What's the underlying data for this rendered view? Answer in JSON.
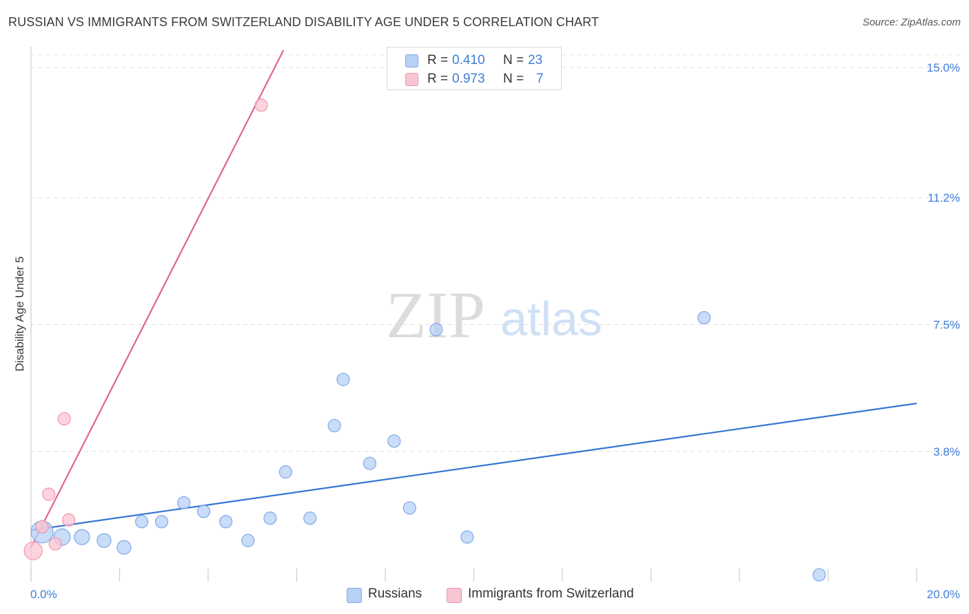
{
  "title": "RUSSIAN VS IMMIGRANTS FROM SWITZERLAND DISABILITY AGE UNDER 5 CORRELATION CHART",
  "source": "Source: ZipAtlas.com",
  "watermark": {
    "zip": "ZIP",
    "atlas": "atlas"
  },
  "legend_top": [
    {
      "r_label": "R =",
      "r_value": "0.410",
      "n_label": "N =",
      "n_value": "23",
      "color": "#b7d0f5",
      "border": "#7ea8e8"
    },
    {
      "r_label": "R =",
      "r_value": "0.973",
      "n_label": "N =",
      "n_value": "7",
      "color": "#f9c5d3",
      "border": "#ef94ad"
    }
  ],
  "legend_bottom": [
    {
      "label": "Russians",
      "color": "#b7d0f5",
      "border": "#7ea8e8"
    },
    {
      "label": "Immigrants from Switzerland",
      "color": "#f9c5d3",
      "border": "#ef94ad"
    }
  ],
  "chart_data": {
    "type": "scatter",
    "title": "RUSSIAN VS IMMIGRANTS FROM SWITZERLAND DISABILITY AGE UNDER 5 CORRELATION CHART",
    "xlabel": "",
    "ylabel": "Disability Age Under 5",
    "xlim": [
      0,
      20
    ],
    "ylim": [
      0,
      15.5
    ],
    "x_tick_labels": [
      "0.0%",
      "20.0%"
    ],
    "y_ticks": [
      3.8,
      7.5,
      11.2,
      15.0
    ],
    "y_tick_labels": [
      "3.8%",
      "7.5%",
      "11.2%",
      "15.0%"
    ],
    "grid": true,
    "legend_position": "top-center",
    "series": [
      {
        "name": "Russians",
        "color": "#7ea8e8",
        "fill": "#b7d0f5",
        "line_color": "#3474d4",
        "trend": [
          [
            0.0,
            1.5
          ],
          [
            20.0,
            5.2
          ]
        ],
        "points": [
          [
            0.25,
            1.45,
            16
          ],
          [
            0.7,
            1.3,
            12
          ],
          [
            1.15,
            1.3,
            11
          ],
          [
            1.65,
            1.2,
            10
          ],
          [
            2.1,
            1.0,
            10
          ],
          [
            2.5,
            1.75,
            9
          ],
          [
            2.95,
            1.75,
            9
          ],
          [
            3.45,
            2.3,
            9
          ],
          [
            3.9,
            2.05,
            9
          ],
          [
            4.4,
            1.75,
            9
          ],
          [
            4.9,
            1.2,
            9
          ],
          [
            5.4,
            1.85,
            9
          ],
          [
            5.75,
            3.2,
            9
          ],
          [
            6.3,
            1.85,
            9
          ],
          [
            6.85,
            4.55,
            9
          ],
          [
            7.05,
            5.9,
            9
          ],
          [
            7.65,
            3.45,
            9
          ],
          [
            8.2,
            4.1,
            9
          ],
          [
            8.55,
            2.15,
            9
          ],
          [
            9.15,
            7.35,
            9
          ],
          [
            9.85,
            1.3,
            9
          ],
          [
            15.2,
            7.7,
            9
          ],
          [
            17.8,
            0.2,
            9
          ]
        ]
      },
      {
        "name": "Immigrants from Switzerland",
        "color": "#ef94ad",
        "fill": "#f9c5d3",
        "line_color": "#e0648f",
        "trend": [
          [
            0.0,
            1.0
          ],
          [
            5.7,
            15.5
          ]
        ],
        "points": [
          [
            0.05,
            0.9,
            13
          ],
          [
            0.25,
            1.6,
            9
          ],
          [
            0.4,
            2.55,
            9
          ],
          [
            0.55,
            1.1,
            9
          ],
          [
            0.75,
            4.75,
            9
          ],
          [
            0.85,
            1.8,
            9
          ],
          [
            5.2,
            13.9,
            9
          ]
        ]
      }
    ]
  }
}
